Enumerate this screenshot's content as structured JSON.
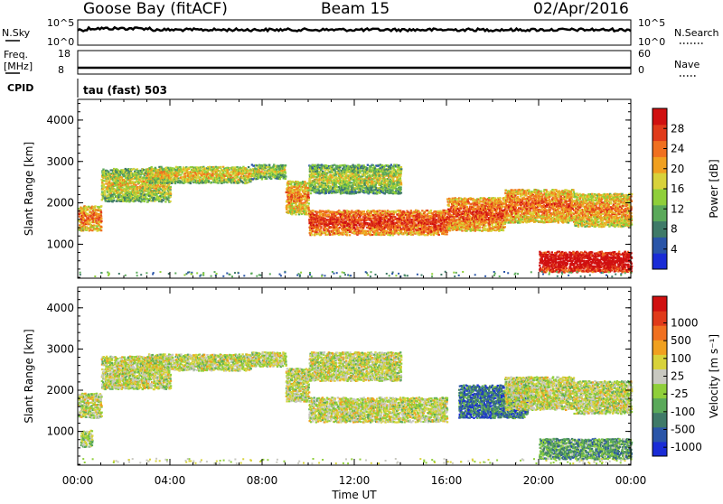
{
  "header": {
    "station": "Goose Bay (fitACF)",
    "beam": "Beam 15",
    "date": "02/Apr/2016"
  },
  "strip_labels": {
    "nsky": "N.Sky",
    "nsearch": "N.Search",
    "nsky_ticks": [
      "10^5",
      "10^0"
    ],
    "freq": "Freq.",
    "freq_unit": "[MHz]",
    "freq_ticks": [
      "18",
      "8"
    ],
    "nave": "Nave",
    "nave_ticks": [
      "60",
      "0"
    ],
    "cpid": "CPID",
    "cpid_value": "tau (fast) 503"
  },
  "chart_data": [
    {
      "type": "heatmap",
      "name": "power-panel",
      "ylabel": "Slant Range [km]",
      "xlabel": "",
      "x_ticks": [
        "00:00",
        "04:00",
        "08:00",
        "12:00",
        "16:00",
        "20:00",
        "00:00"
      ],
      "xlim": [
        0,
        24
      ],
      "y_ticks": [
        1000,
        2000,
        3000,
        4000
      ],
      "ylim": [
        180,
        4500
      ],
      "colorbar": {
        "label": "Power [dB]",
        "ticks": [
          "4",
          "8",
          "12",
          "16",
          "20",
          "24",
          "28"
        ],
        "colors": [
          "#1a2cd6",
          "#2a55a8",
          "#3f7a68",
          "#5aa95a",
          "#8fcf3a",
          "#d8d23a",
          "#f0a020",
          "#f07020",
          "#e03a1a",
          "#d01010"
        ]
      },
      "bands": [
        {
          "t0": 0.0,
          "t1": 1.0,
          "r0": 1300,
          "r1": 1900,
          "level": 0.55
        },
        {
          "t0": 1.0,
          "t1": 4.0,
          "r0": 2000,
          "r1": 2800,
          "level": 0.35
        },
        {
          "t0": 3.0,
          "t1": 7.5,
          "r0": 2450,
          "r1": 2850,
          "level": 0.4
        },
        {
          "t0": 7.5,
          "t1": 9.0,
          "r0": 2550,
          "r1": 2900,
          "level": 0.3
        },
        {
          "t0": 9.0,
          "t1": 10.0,
          "r0": 1700,
          "r1": 2500,
          "level": 0.5
        },
        {
          "t0": 10.0,
          "t1": 16.0,
          "r0": 1200,
          "r1": 1800,
          "level": 0.65
        },
        {
          "t0": 16.0,
          "t1": 18.5,
          "r0": 1300,
          "r1": 2100,
          "level": 0.6
        },
        {
          "t0": 18.5,
          "t1": 21.5,
          "r0": 1500,
          "r1": 2300,
          "level": 0.55
        },
        {
          "t0": 21.5,
          "t1": 24.0,
          "r0": 1400,
          "r1": 2200,
          "level": 0.5
        },
        {
          "t0": 20.0,
          "t1": 24.0,
          "r0": 300,
          "r1": 800,
          "level": 0.85
        },
        {
          "t0": 10.0,
          "t1": 14.0,
          "r0": 2200,
          "r1": 2900,
          "level": 0.3
        }
      ]
    },
    {
      "type": "heatmap",
      "name": "velocity-panel",
      "ylabel": "Slant Range [km]",
      "xlabel": "Time UT",
      "x_ticks": [
        "00:00",
        "04:00",
        "08:00",
        "12:00",
        "16:00",
        "20:00",
        "00:00"
      ],
      "xlim": [
        0,
        24
      ],
      "y_ticks": [
        1000,
        2000,
        3000,
        4000
      ],
      "ylim": [
        180,
        4500
      ],
      "colorbar": {
        "label": "Velocity [m s⁻¹]",
        "ticks": [
          "1000",
          "500",
          "100",
          "25",
          "-25",
          "-100",
          "-500",
          "-1000"
        ],
        "colors": [
          "#1a2cd6",
          "#2a55a8",
          "#3f7a68",
          "#5aa95a",
          "#8fcf3a",
          "#c8c8c0",
          "#d8d23a",
          "#f0a020",
          "#f07020",
          "#e03a1a",
          "#d01010"
        ]
      },
      "bands": [
        {
          "t0": 0.0,
          "t1": 1.0,
          "r0": 1300,
          "r1": 1900,
          "level": 0.5
        },
        {
          "t0": 1.0,
          "t1": 4.0,
          "r0": 2000,
          "r1": 2800,
          "level": 0.5
        },
        {
          "t0": 3.0,
          "t1": 7.5,
          "r0": 2450,
          "r1": 2850,
          "level": 0.5
        },
        {
          "t0": 7.5,
          "t1": 9.0,
          "r0": 2550,
          "r1": 2900,
          "level": 0.5
        },
        {
          "t0": 9.0,
          "t1": 10.0,
          "r0": 1700,
          "r1": 2500,
          "level": 0.5
        },
        {
          "t0": 10.0,
          "t1": 16.0,
          "r0": 1200,
          "r1": 1800,
          "level": 0.5
        },
        {
          "t0": 16.5,
          "t1": 19.5,
          "r0": 1300,
          "r1": 2100,
          "level": 0.2
        },
        {
          "t0": 18.5,
          "t1": 21.5,
          "r0": 1500,
          "r1": 2300,
          "level": 0.5
        },
        {
          "t0": 21.5,
          "t1": 24.0,
          "r0": 1400,
          "r1": 2200,
          "level": 0.5
        },
        {
          "t0": 20.0,
          "t1": 24.0,
          "r0": 300,
          "r1": 800,
          "level": 0.3
        },
        {
          "t0": 10.0,
          "t1": 14.0,
          "r0": 2200,
          "r1": 2900,
          "level": 0.5
        },
        {
          "t0": 0.1,
          "t1": 0.6,
          "r0": 600,
          "r1": 1000,
          "level": 0.45
        }
      ]
    }
  ]
}
